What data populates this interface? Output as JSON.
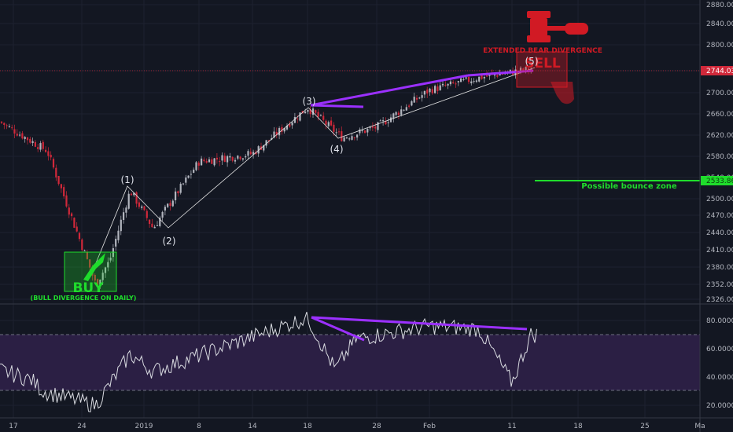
{
  "colors": {
    "background": "#131722",
    "grid": "#1e2230",
    "up": "#b2b5be",
    "down": "#d0283a",
    "purple": "#9b30ff",
    "green": "#1fdc2c",
    "red": "#d11a24",
    "rsi_band": "#2b1f44"
  },
  "annotations": {
    "buy_label": "BUY",
    "bull_divergence": "(BULL DIVERGENCE ON DAILY)",
    "sell_label": "SELL",
    "bear_divergence": "EXTENDED BEAR DIVERGENCE",
    "bounce_zone": "Possible bounce zone"
  },
  "chart_data": [
    {
      "type": "candlestick",
      "x_ticks": [
        "17",
        "24",
        "2019",
        "8",
        "14",
        "18",
        "28",
        "Feb",
        "11",
        "18",
        "25",
        "Ma"
      ],
      "y_ticks": [
        2326.0,
        2352.0,
        2380.0,
        2410.0,
        2440.0,
        2470.0,
        2500.0,
        2540.0,
        2580.0,
        2620.0,
        2660.0,
        2700.0,
        2744.0,
        2800.0,
        2840.0,
        2880.0
      ],
      "ylim": [
        2326,
        2880
      ],
      "price_marker": "2744.03",
      "bounce_marker": "2533.86",
      "wave_labels": [
        "(1)",
        "(2)",
        "(3)",
        "(4)",
        "(5)"
      ],
      "key_points": [
        {
          "date": "2018-12-26",
          "price": 2352
        },
        {
          "date": "2018-12-28",
          "price": 2390
        },
        {
          "date": "2018-12-31",
          "price": 2515
        },
        {
          "date": "2019-01-03",
          "price": 2447
        },
        {
          "date": "2019-01-08",
          "price": 2570
        },
        {
          "date": "2019-01-14",
          "price": 2585
        },
        {
          "date": "2019-01-18",
          "price": 2672
        },
        {
          "date": "2019-01-23",
          "price": 2615
        },
        {
          "date": "2019-01-28",
          "price": 2635
        },
        {
          "date": "2019-02-01",
          "price": 2705
        },
        {
          "date": "2019-02-07",
          "price": 2730
        },
        {
          "date": "2019-02-13",
          "price": 2748
        }
      ]
    },
    {
      "type": "line",
      "indicator": "RSI",
      "y_ticks": [
        "80.0000",
        "60.0000",
        "40.0000",
        "20.0000"
      ],
      "ylim": [
        14,
        88
      ],
      "band": [
        30,
        70
      ],
      "key_points": [
        {
          "date": "2018-12-20",
          "value": 30
        },
        {
          "date": "2018-12-26",
          "value": 20
        },
        {
          "date": "2018-12-31",
          "value": 56
        },
        {
          "date": "2019-01-03",
          "value": 44
        },
        {
          "date": "2019-01-18",
          "value": 82
        },
        {
          "date": "2019-01-22",
          "value": 45
        },
        {
          "date": "2019-01-25",
          "value": 67
        },
        {
          "date": "2019-02-01",
          "value": 76
        },
        {
          "date": "2019-02-07",
          "value": 74
        },
        {
          "date": "2019-02-11",
          "value": 36
        },
        {
          "date": "2019-02-13",
          "value": 70
        }
      ]
    }
  ]
}
